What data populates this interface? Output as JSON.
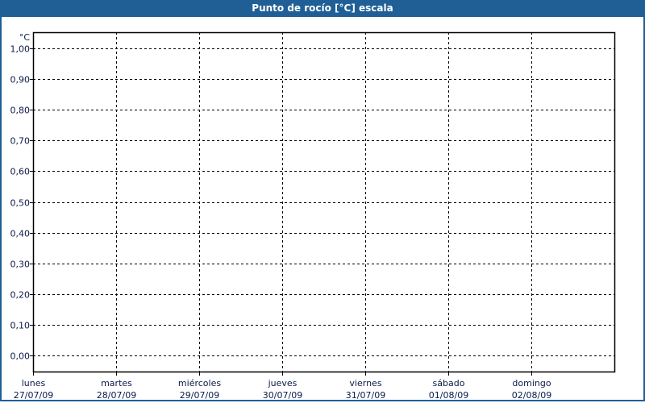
{
  "title": "Punto de rocío [°C] escala",
  "chart_data": {
    "type": "line",
    "title": "Punto de rocío [°C] escala",
    "ylabel": "°C",
    "ylim": [
      0,
      1
    ],
    "yticks": [
      "0,00",
      "0,10",
      "0,20",
      "0,30",
      "0,40",
      "0,50",
      "0,60",
      "0,70",
      "0,80",
      "0,90",
      "1,00"
    ],
    "xticks": [
      {
        "day": "lunes",
        "date": "27/07/09"
      },
      {
        "day": "martes",
        "date": "28/07/09"
      },
      {
        "day": "miércoles",
        "date": "29/07/09"
      },
      {
        "day": "jueves",
        "date": "30/07/09"
      },
      {
        "day": "viernes",
        "date": "31/07/09"
      },
      {
        "day": "sábado",
        "date": "01/08/09"
      },
      {
        "day": "domingo",
        "date": "02/08/09"
      }
    ],
    "grid": true,
    "series": []
  },
  "colors": {
    "titlebar": "#1f5f96",
    "text": "#0a1a4a"
  }
}
